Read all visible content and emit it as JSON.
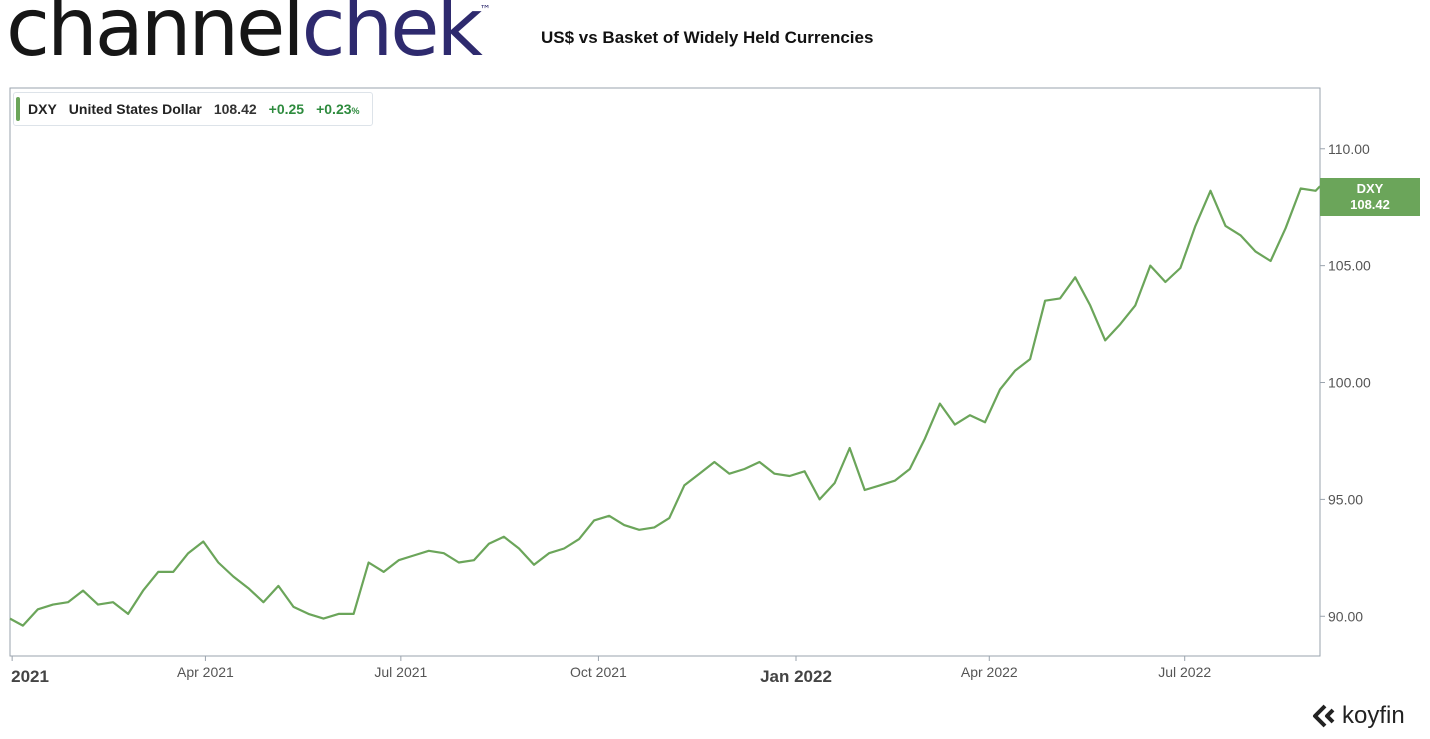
{
  "brand": {
    "part1": "channel",
    "part2": "chek",
    "tm": "™"
  },
  "title": "US$ vs Basket of Widely Held Currencies",
  "legend": {
    "symbol": "DXY",
    "name": "United States Dollar",
    "price": "108.42",
    "change": "+0.25",
    "pct": "+0.23",
    "pct_unit": "%"
  },
  "last_tag": {
    "symbol": "DXY",
    "value": "108.42"
  },
  "footer_brand": "koyfin",
  "colors": {
    "line": "#6ba55a",
    "positive": "#2e8b3e",
    "logo_dark": "#161616",
    "logo_accent": "#2e2a6e"
  },
  "chart_data": {
    "type": "line",
    "title": "US$ vs Basket of Widely Held Currencies",
    "x_ticks": [
      {
        "label": "2021",
        "date": "2021-01-01"
      },
      {
        "label": "Apr 2021",
        "date": "2021-04-01"
      },
      {
        "label": "Jul 2021",
        "date": "2021-07-01"
      },
      {
        "label": "Oct 2021",
        "date": "2021-10-01"
      },
      {
        "label": "Jan 2022",
        "date": "2022-01-01"
      },
      {
        "label": "Apr 2022",
        "date": "2022-04-01"
      },
      {
        "label": "Jul 2022",
        "date": "2022-07-01"
      }
    ],
    "y_ticks": [
      90,
      95,
      100,
      105,
      110
    ],
    "y_tick_labels": [
      "90.00",
      "95.00",
      "100.00",
      "105.00",
      "110.00"
    ],
    "ylim": [
      88.3,
      112.6
    ],
    "xlim": [
      "2020-12-31",
      "2022-09-02"
    ],
    "series": [
      {
        "name": "DXY",
        "x": [
          "2020-12-31",
          "2021-01-06",
          "2021-01-13",
          "2021-01-20",
          "2021-01-27",
          "2021-02-03",
          "2021-02-10",
          "2021-02-17",
          "2021-02-24",
          "2021-03-03",
          "2021-03-10",
          "2021-03-17",
          "2021-03-24",
          "2021-03-31",
          "2021-04-07",
          "2021-04-14",
          "2021-04-21",
          "2021-04-28",
          "2021-05-05",
          "2021-05-12",
          "2021-05-19",
          "2021-05-26",
          "2021-06-02",
          "2021-06-09",
          "2021-06-16",
          "2021-06-23",
          "2021-06-30",
          "2021-07-07",
          "2021-07-14",
          "2021-07-21",
          "2021-07-28",
          "2021-08-04",
          "2021-08-11",
          "2021-08-18",
          "2021-08-25",
          "2021-09-01",
          "2021-09-08",
          "2021-09-15",
          "2021-09-22",
          "2021-09-29",
          "2021-10-06",
          "2021-10-13",
          "2021-10-20",
          "2021-10-27",
          "2021-11-03",
          "2021-11-10",
          "2021-11-17",
          "2021-11-24",
          "2021-12-01",
          "2021-12-08",
          "2021-12-15",
          "2021-12-22",
          "2021-12-29",
          "2022-01-05",
          "2022-01-12",
          "2022-01-19",
          "2022-01-26",
          "2022-02-02",
          "2022-02-09",
          "2022-02-16",
          "2022-02-23",
          "2022-03-02",
          "2022-03-09",
          "2022-03-16",
          "2022-03-23",
          "2022-03-30",
          "2022-04-06",
          "2022-04-13",
          "2022-04-20",
          "2022-04-27",
          "2022-05-04",
          "2022-05-11",
          "2022-05-18",
          "2022-05-25",
          "2022-06-01",
          "2022-06-08",
          "2022-06-15",
          "2022-06-22",
          "2022-06-29",
          "2022-07-06",
          "2022-07-13",
          "2022-07-20",
          "2022-07-27",
          "2022-08-03",
          "2022-08-10",
          "2022-08-17",
          "2022-08-24",
          "2022-08-31",
          "2022-09-02"
        ],
        "values": [
          89.9,
          89.6,
          90.3,
          90.5,
          90.6,
          91.1,
          90.5,
          90.6,
          90.1,
          91.1,
          91.9,
          91.9,
          92.7,
          93.2,
          92.3,
          91.7,
          91.2,
          90.6,
          91.3,
          90.4,
          90.1,
          89.9,
          90.1,
          90.1,
          92.3,
          91.9,
          92.4,
          92.6,
          92.8,
          92.7,
          92.3,
          92.4,
          93.1,
          93.4,
          92.9,
          92.2,
          92.7,
          92.9,
          93.3,
          94.1,
          94.3,
          93.9,
          93.7,
          93.8,
          94.2,
          95.6,
          96.1,
          96.6,
          96.1,
          96.3,
          96.6,
          96.1,
          96.0,
          96.2,
          95.0,
          95.7,
          97.2,
          95.4,
          95.6,
          95.8,
          96.3,
          97.6,
          99.1,
          98.2,
          98.6,
          98.3,
          99.7,
          100.5,
          101.0,
          103.5,
          103.6,
          104.5,
          103.3,
          101.8,
          102.5,
          103.3,
          105.0,
          104.3,
          104.9,
          106.7,
          108.2,
          106.7,
          106.3,
          105.6,
          105.2,
          106.6,
          108.3,
          108.2,
          108.4
        ]
      }
    ],
    "grid": false,
    "legend_position": "top-left"
  }
}
